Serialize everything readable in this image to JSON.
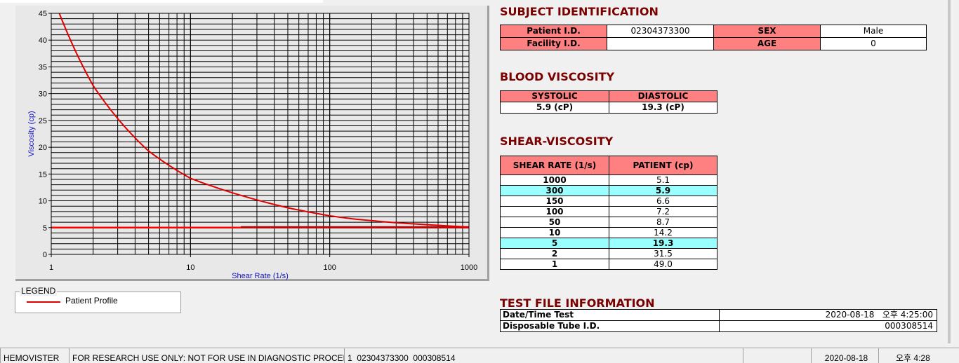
{
  "chart_data": {
    "type": "line",
    "xlabel": "Shear Rate (1/s)",
    "ylabel": "Viscosity (cp)",
    "xscale": "log",
    "xlim": [
      1,
      1000
    ],
    "ylim": [
      0,
      45
    ],
    "xticks": [
      "1",
      "10",
      "100",
      "1000"
    ],
    "yticks": [
      "0",
      "5",
      "10",
      "15",
      "20",
      "25",
      "30",
      "35",
      "40",
      "45"
    ],
    "grid": true,
    "series": [
      {
        "name": "Patient Profile",
        "color": "#e00000",
        "x": [
          1,
          2,
          5,
          10,
          50,
          100,
          150,
          300,
          1000
        ],
        "y": [
          49.0,
          31.5,
          19.3,
          14.2,
          8.7,
          7.2,
          6.6,
          5.9,
          5.1
        ]
      },
      {
        "color": "#ff0000",
        "x": [
          1,
          1000
        ],
        "y": [
          5,
          5
        ]
      },
      {
        "color": "#a01010",
        "x": [
          23,
          1000
        ],
        "y": [
          5.1,
          5.1
        ]
      }
    ],
    "legend": {
      "title": "LEGEND",
      "placement": "bottom-left"
    }
  },
  "subject": {
    "title": "SUBJECT IDENTIFICATION",
    "patient_id_label": "Patient I.D.",
    "patient_id": "02304373300",
    "sex_label": "SEX",
    "sex": "Male",
    "facility_label": "Facility I.D.",
    "facility": "",
    "age_label": "AGE",
    "age": "0"
  },
  "blood": {
    "title": "BLOOD VISCOSITY",
    "systolic_label": "SYSTOLIC",
    "diastolic_label": "DIASTOLIC",
    "systolic": "5.9 (cP)",
    "diastolic": "19.3 (cP)"
  },
  "shear": {
    "title": "SHEAR-VISCOSITY",
    "col1": "SHEAR RATE (1/s)",
    "col2": "PATIENT (cp)",
    "rows": [
      [
        "1000",
        "5.1",
        false
      ],
      [
        "300",
        "5.9",
        true
      ],
      [
        "150",
        "6.6",
        false
      ],
      [
        "100",
        "7.2",
        false
      ],
      [
        "50",
        "8.7",
        false
      ],
      [
        "10",
        "14.2",
        false
      ],
      [
        "5",
        "19.3",
        true
      ],
      [
        "2",
        "31.5",
        false
      ],
      [
        "1",
        "49.0",
        false
      ]
    ]
  },
  "testfile": {
    "title": "TEST FILE INFORMATION",
    "date_label": "Date/Time Test",
    "date": "2020-08-18   오후 4:25:00",
    "tube_label": "Disposable Tube I.D.",
    "tube": "000308514"
  },
  "status": {
    "app": "HEMOVISTER",
    "notice": "FOR RESEARCH USE ONLY: NOT FOR USE IN DIAGNOSTIC PROCEDURES",
    "record": "1  02304373300  000308514",
    "date": "2020-08-18",
    "time": "오후 4:28"
  },
  "colors": {
    "header": "#ff8080",
    "highlight": "#99ffff",
    "title": "#7a0000"
  }
}
